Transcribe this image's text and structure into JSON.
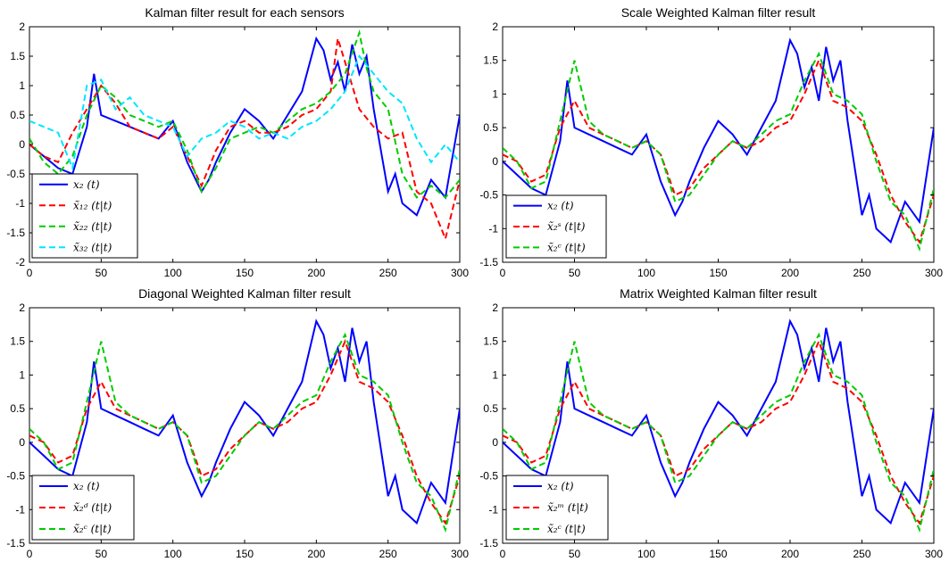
{
  "chart_data": [
    {
      "type": "line",
      "title": "Kalman filter result for each sensors",
      "xlim": [
        0,
        300
      ],
      "ylim": [
        -2,
        2
      ],
      "xticks": [
        0,
        50,
        100,
        150,
        200,
        250,
        300
      ],
      "yticks": [
        -2,
        -1.5,
        -1,
        -0.5,
        0,
        0.5,
        1,
        1.5,
        2
      ],
      "legend_position": "bottom-left",
      "grid": false,
      "series": [
        {
          "name": "x₂ (t)",
          "color": "#0000ff",
          "dash": "solid",
          "x": [
            0,
            10,
            20,
            30,
            40,
            45,
            50,
            60,
            70,
            80,
            90,
            100,
            110,
            120,
            125,
            130,
            140,
            150,
            160,
            170,
            180,
            190,
            200,
            205,
            210,
            215,
            220,
            225,
            230,
            235,
            240,
            250,
            255,
            260,
            270,
            280,
            290,
            300
          ],
          "y": [
            0,
            -0.2,
            -0.4,
            -0.5,
            0.3,
            1.2,
            0.5,
            0.4,
            0.3,
            0.2,
            0.1,
            0.4,
            -0.3,
            -0.8,
            -0.6,
            -0.3,
            0.2,
            0.6,
            0.4,
            0.1,
            0.5,
            0.9,
            1.8,
            1.6,
            1.1,
            1.4,
            0.9,
            1.7,
            1.2,
            1.5,
            0.6,
            -0.8,
            -0.5,
            -1.0,
            -1.2,
            -0.6,
            -0.9,
            0.5
          ]
        },
        {
          "name": "x̃₁₂ (t|t)",
          "color": "#ff0000",
          "dash": "dashed",
          "x": [
            0,
            10,
            20,
            30,
            40,
            50,
            60,
            70,
            80,
            90,
            100,
            110,
            120,
            130,
            140,
            150,
            160,
            170,
            180,
            190,
            200,
            210,
            215,
            220,
            230,
            240,
            250,
            260,
            270,
            280,
            290,
            300
          ],
          "y": [
            0,
            -0.2,
            -0.3,
            0.2,
            0.6,
            1.0,
            0.7,
            0.3,
            0.2,
            0.1,
            0.3,
            -0.2,
            -0.7,
            -0.1,
            0.3,
            0.4,
            0.2,
            0.2,
            0.3,
            0.5,
            0.6,
            0.9,
            1.8,
            1.4,
            0.6,
            0.3,
            0.1,
            0.2,
            -0.8,
            -1.0,
            -1.6,
            -0.6
          ]
        },
        {
          "name": "x̃₂₂ (t|t)",
          "color": "#00cc00",
          "dash": "dashed",
          "x": [
            0,
            10,
            20,
            30,
            40,
            50,
            60,
            70,
            80,
            90,
            100,
            110,
            120,
            130,
            140,
            150,
            160,
            170,
            180,
            190,
            200,
            210,
            220,
            230,
            235,
            240,
            250,
            260,
            270,
            280,
            290,
            300
          ],
          "y": [
            0.1,
            -0.3,
            -0.5,
            -0.2,
            0.5,
            1.0,
            0.8,
            0.5,
            0.4,
            0.3,
            0.4,
            -0.1,
            -0.8,
            -0.4,
            0.1,
            0.2,
            0.3,
            0.2,
            0.4,
            0.6,
            0.7,
            0.9,
            1.2,
            1.9,
            1.3,
            0.9,
            0.6,
            -0.5,
            -0.9,
            -0.7,
            -0.9,
            -0.6
          ]
        },
        {
          "name": "x̃₃₂ (t|t)",
          "color": "#00e5ff",
          "dash": "dashed",
          "x": [
            0,
            10,
            20,
            30,
            40,
            50,
            60,
            70,
            80,
            90,
            100,
            110,
            120,
            130,
            140,
            150,
            160,
            170,
            180,
            190,
            200,
            210,
            220,
            230,
            240,
            250,
            260,
            270,
            280,
            290,
            300
          ],
          "y": [
            0.4,
            0.3,
            0.2,
            -0.4,
            1.0,
            1.1,
            0.6,
            0.8,
            0.5,
            0.4,
            0.3,
            -0.2,
            0.1,
            0.2,
            0.4,
            0.3,
            0.1,
            0.2,
            0.1,
            0.3,
            0.4,
            0.6,
            0.9,
            1.5,
            1.2,
            0.9,
            0.7,
            0.1,
            -0.3,
            0.0,
            -0.3
          ]
        }
      ]
    },
    {
      "type": "line",
      "title": "Scale Weighted Kalman filter result",
      "xlim": [
        0,
        300
      ],
      "ylim": [
        -1.5,
        2
      ],
      "xticks": [
        0,
        50,
        100,
        150,
        200,
        250,
        300
      ],
      "yticks": [
        -1.5,
        -1,
        -0.5,
        0,
        0.5,
        1,
        1.5,
        2
      ],
      "legend_position": "bottom-left",
      "grid": false,
      "series": [
        {
          "name": "x₂ (t)",
          "color": "#0000ff",
          "dash": "solid",
          "x": [
            0,
            10,
            20,
            30,
            40,
            45,
            50,
            60,
            70,
            80,
            90,
            100,
            110,
            120,
            125,
            130,
            140,
            150,
            160,
            170,
            180,
            190,
            200,
            205,
            210,
            215,
            220,
            225,
            230,
            235,
            240,
            250,
            255,
            260,
            270,
            280,
            290,
            300
          ],
          "y": [
            0,
            -0.2,
            -0.4,
            -0.5,
            0.3,
            1.2,
            0.5,
            0.4,
            0.3,
            0.2,
            0.1,
            0.4,
            -0.3,
            -0.8,
            -0.6,
            -0.3,
            0.2,
            0.6,
            0.4,
            0.1,
            0.5,
            0.9,
            1.8,
            1.6,
            1.1,
            1.4,
            0.9,
            1.7,
            1.2,
            1.5,
            0.6,
            -0.8,
            -0.5,
            -1.0,
            -1.2,
            -0.6,
            -0.9,
            0.5
          ]
        },
        {
          "name": "x̃₂ˢ (t|t)",
          "color": "#ff0000",
          "dash": "dashed",
          "x": [
            0,
            10,
            20,
            30,
            40,
            50,
            60,
            70,
            80,
            90,
            100,
            110,
            120,
            130,
            140,
            150,
            160,
            170,
            180,
            190,
            200,
            210,
            220,
            230,
            240,
            250,
            260,
            270,
            280,
            290,
            300
          ],
          "y": [
            0.1,
            0.0,
            -0.3,
            -0.2,
            0.5,
            0.9,
            0.5,
            0.4,
            0.3,
            0.2,
            0.3,
            0.1,
            -0.5,
            -0.4,
            -0.1,
            0.1,
            0.3,
            0.2,
            0.3,
            0.5,
            0.6,
            1.0,
            1.5,
            0.9,
            0.8,
            0.6,
            0.1,
            -0.5,
            -0.9,
            -1.2,
            -0.5
          ]
        },
        {
          "name": "x̃₂ᶜ (t|t)",
          "color": "#00cc00",
          "dash": "dashed",
          "x": [
            0,
            10,
            20,
            30,
            40,
            50,
            60,
            70,
            80,
            90,
            100,
            110,
            120,
            130,
            140,
            150,
            160,
            170,
            180,
            190,
            200,
            210,
            220,
            230,
            240,
            250,
            260,
            270,
            280,
            290,
            300
          ],
          "y": [
            0.2,
            0.0,
            -0.4,
            -0.3,
            0.6,
            1.5,
            0.6,
            0.4,
            0.3,
            0.2,
            0.3,
            0.1,
            -0.6,
            -0.5,
            -0.2,
            0.1,
            0.3,
            0.2,
            0.4,
            0.6,
            0.7,
            1.2,
            1.6,
            1.0,
            0.9,
            0.7,
            0.0,
            -0.6,
            -0.8,
            -1.3,
            -0.4
          ]
        }
      ]
    },
    {
      "type": "line",
      "title": "Diagonal Weighted Kalman filter result",
      "xlim": [
        0,
        300
      ],
      "ylim": [
        -1.5,
        2
      ],
      "xticks": [
        0,
        50,
        100,
        150,
        200,
        250,
        300
      ],
      "yticks": [
        -1.5,
        -1,
        -0.5,
        0,
        0.5,
        1,
        1.5,
        2
      ],
      "legend_position": "bottom-left",
      "grid": false,
      "series": [
        {
          "name": "x₂ (t)",
          "color": "#0000ff",
          "dash": "solid",
          "x": [
            0,
            10,
            20,
            30,
            40,
            45,
            50,
            60,
            70,
            80,
            90,
            100,
            110,
            120,
            125,
            130,
            140,
            150,
            160,
            170,
            180,
            190,
            200,
            205,
            210,
            215,
            220,
            225,
            230,
            235,
            240,
            250,
            255,
            260,
            270,
            280,
            290,
            300
          ],
          "y": [
            0,
            -0.2,
            -0.4,
            -0.5,
            0.3,
            1.2,
            0.5,
            0.4,
            0.3,
            0.2,
            0.1,
            0.4,
            -0.3,
            -0.8,
            -0.6,
            -0.3,
            0.2,
            0.6,
            0.4,
            0.1,
            0.5,
            0.9,
            1.8,
            1.6,
            1.1,
            1.4,
            0.9,
            1.7,
            1.2,
            1.5,
            0.6,
            -0.8,
            -0.5,
            -1.0,
            -1.2,
            -0.6,
            -0.9,
            0.5
          ]
        },
        {
          "name": "x̃₂ᵈ (t|t)",
          "color": "#ff0000",
          "dash": "dashed",
          "x": [
            0,
            10,
            20,
            30,
            40,
            50,
            60,
            70,
            80,
            90,
            100,
            110,
            120,
            130,
            140,
            150,
            160,
            170,
            180,
            190,
            200,
            210,
            220,
            230,
            240,
            250,
            260,
            270,
            280,
            290,
            300
          ],
          "y": [
            0.1,
            0.0,
            -0.3,
            -0.2,
            0.5,
            0.9,
            0.5,
            0.4,
            0.3,
            0.2,
            0.3,
            0.1,
            -0.5,
            -0.4,
            -0.1,
            0.1,
            0.3,
            0.2,
            0.3,
            0.5,
            0.6,
            1.0,
            1.5,
            0.9,
            0.8,
            0.6,
            0.1,
            -0.5,
            -0.9,
            -1.2,
            -0.5
          ]
        },
        {
          "name": "x̃₂ᶜ (t|t)",
          "color": "#00cc00",
          "dash": "dashed",
          "x": [
            0,
            10,
            20,
            30,
            40,
            50,
            60,
            70,
            80,
            90,
            100,
            110,
            120,
            130,
            140,
            150,
            160,
            170,
            180,
            190,
            200,
            210,
            220,
            230,
            240,
            250,
            260,
            270,
            280,
            290,
            300
          ],
          "y": [
            0.2,
            0.0,
            -0.4,
            -0.3,
            0.6,
            1.5,
            0.6,
            0.4,
            0.3,
            0.2,
            0.3,
            0.1,
            -0.6,
            -0.5,
            -0.2,
            0.1,
            0.3,
            0.2,
            0.4,
            0.6,
            0.7,
            1.2,
            1.6,
            1.0,
            0.9,
            0.7,
            0.0,
            -0.6,
            -0.8,
            -1.3,
            -0.4
          ]
        }
      ]
    },
    {
      "type": "line",
      "title": "Matrix Weighted Kalman filter result",
      "xlim": [
        0,
        300
      ],
      "ylim": [
        -1.5,
        2
      ],
      "xticks": [
        0,
        50,
        100,
        150,
        200,
        250,
        300
      ],
      "yticks": [
        -1.5,
        -1,
        -0.5,
        0,
        0.5,
        1,
        1.5,
        2
      ],
      "legend_position": "bottom-left",
      "grid": false,
      "series": [
        {
          "name": "x₂ (t)",
          "color": "#0000ff",
          "dash": "solid",
          "x": [
            0,
            10,
            20,
            30,
            40,
            45,
            50,
            60,
            70,
            80,
            90,
            100,
            110,
            120,
            125,
            130,
            140,
            150,
            160,
            170,
            180,
            190,
            200,
            205,
            210,
            215,
            220,
            225,
            230,
            235,
            240,
            250,
            255,
            260,
            270,
            280,
            290,
            300
          ],
          "y": [
            0,
            -0.2,
            -0.4,
            -0.5,
            0.3,
            1.2,
            0.5,
            0.4,
            0.3,
            0.2,
            0.1,
            0.4,
            -0.3,
            -0.8,
            -0.6,
            -0.3,
            0.2,
            0.6,
            0.4,
            0.1,
            0.5,
            0.9,
            1.8,
            1.6,
            1.1,
            1.4,
            0.9,
            1.7,
            1.2,
            1.5,
            0.6,
            -0.8,
            -0.5,
            -1.0,
            -1.2,
            -0.6,
            -0.9,
            0.5
          ]
        },
        {
          "name": "x̃₂ᵐ (t|t)",
          "color": "#ff0000",
          "dash": "dashed",
          "x": [
            0,
            10,
            20,
            30,
            40,
            50,
            60,
            70,
            80,
            90,
            100,
            110,
            120,
            130,
            140,
            150,
            160,
            170,
            180,
            190,
            200,
            210,
            220,
            230,
            240,
            250,
            260,
            270,
            280,
            290,
            300
          ],
          "y": [
            0.1,
            0.0,
            -0.3,
            -0.2,
            0.5,
            0.9,
            0.5,
            0.4,
            0.3,
            0.2,
            0.3,
            0.1,
            -0.5,
            -0.4,
            -0.1,
            0.1,
            0.3,
            0.2,
            0.3,
            0.5,
            0.6,
            1.0,
            1.5,
            0.9,
            0.8,
            0.6,
            0.1,
            -0.5,
            -0.9,
            -1.2,
            -0.5
          ]
        },
        {
          "name": "x̃₂ᶜ (t|t)",
          "color": "#00cc00",
          "dash": "dashed",
          "x": [
            0,
            10,
            20,
            30,
            40,
            50,
            60,
            70,
            80,
            90,
            100,
            110,
            120,
            130,
            140,
            150,
            160,
            170,
            180,
            190,
            200,
            210,
            220,
            230,
            240,
            250,
            260,
            270,
            280,
            290,
            300
          ],
          "y": [
            0.2,
            0.0,
            -0.4,
            -0.3,
            0.6,
            1.5,
            0.6,
            0.4,
            0.3,
            0.2,
            0.3,
            0.1,
            -0.6,
            -0.5,
            -0.2,
            0.1,
            0.3,
            0.2,
            0.4,
            0.6,
            0.7,
            1.2,
            1.6,
            1.0,
            0.9,
            0.7,
            0.0,
            -0.6,
            -0.8,
            -1.3,
            -0.4
          ]
        }
      ]
    }
  ]
}
